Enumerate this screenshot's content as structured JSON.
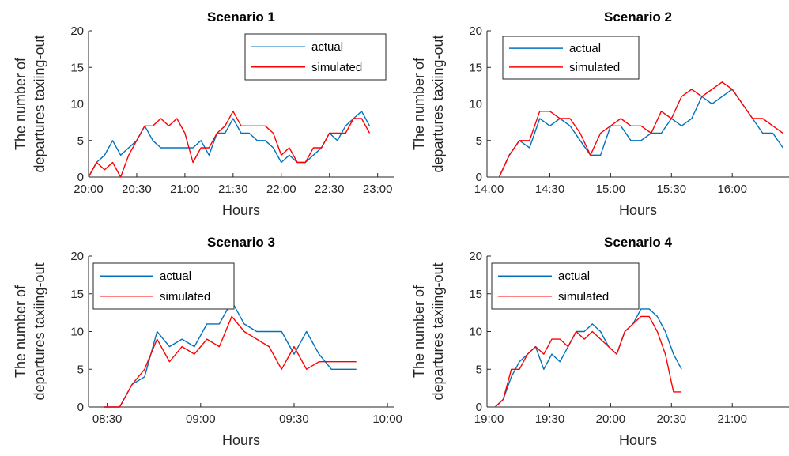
{
  "figure": {
    "colors": {
      "actual": "#0072BD",
      "simulated": "#FF0000",
      "axes": "#262626"
    }
  },
  "chart_data": [
    {
      "type": "line",
      "title": "Scenario 1",
      "xlabel": "Hours",
      "ylabel": [
        "The number of",
        "departures taxiing-out"
      ],
      "xlim": [
        "20:00",
        "23:10"
      ],
      "ylim": [
        0,
        20
      ],
      "x_ticks": [
        "20:00",
        "20:30",
        "21:00",
        "21:30",
        "22:00",
        "22:30",
        "23:00"
      ],
      "y_ticks": [
        0,
        5,
        10,
        15,
        20
      ],
      "legend": "top-right",
      "series": [
        {
          "name": "actual",
          "color": "#0072BD",
          "x": [
            "20:00",
            "20:05",
            "20:10",
            "20:15",
            "20:20",
            "20:25",
            "20:30",
            "20:35",
            "20:40",
            "20:45",
            "20:50",
            "20:55",
            "21:00",
            "21:05",
            "21:10",
            "21:15",
            "21:20",
            "21:25",
            "21:30",
            "21:35",
            "21:40",
            "21:45",
            "21:50",
            "21:55",
            "22:00",
            "22:05",
            "22:10",
            "22:15",
            "22:20",
            "22:25",
            "22:30",
            "22:35",
            "22:40",
            "22:45",
            "22:50",
            "22:55"
          ],
          "values": [
            0,
            2,
            3,
            5,
            3,
            4,
            5,
            7,
            5,
            4,
            4,
            4,
            4,
            4,
            5,
            3,
            6,
            6,
            8,
            6,
            6,
            5,
            5,
            4,
            2,
            3,
            2,
            2,
            3,
            4,
            6,
            5,
            7,
            8,
            9,
            7
          ]
        },
        {
          "name": "simulated",
          "color": "#FF0000",
          "x": [
            "20:00",
            "20:05",
            "20:10",
            "20:15",
            "20:20",
            "20:25",
            "20:30",
            "20:35",
            "20:40",
            "20:45",
            "20:50",
            "20:55",
            "21:00",
            "21:05",
            "21:10",
            "21:15",
            "21:20",
            "21:25",
            "21:30",
            "21:35",
            "21:40",
            "21:45",
            "21:50",
            "21:55",
            "22:00",
            "22:05",
            "22:10",
            "22:15",
            "22:20",
            "22:25",
            "22:30",
            "22:35",
            "22:40",
            "22:45",
            "22:50",
            "22:55"
          ],
          "values": [
            0,
            2,
            1,
            2,
            0,
            3,
            5,
            7,
            7,
            8,
            7,
            8,
            6,
            2,
            4,
            4,
            6,
            7,
            9,
            7,
            7,
            7,
            7,
            6,
            3,
            4,
            2,
            2,
            4,
            4,
            6,
            6,
            6,
            8,
            8,
            6
          ]
        }
      ]
    },
    {
      "type": "line",
      "title": "Scenario 2",
      "xlabel": "Hours",
      "ylabel": [
        "The number of",
        "departures taxiing-out"
      ],
      "xlim": [
        "13:59",
        "16:28"
      ],
      "ylim": [
        0,
        20
      ],
      "x_ticks": [
        "14:00",
        "14:30",
        "15:00",
        "15:30",
        "16:00"
      ],
      "y_ticks": [
        0,
        5,
        10,
        15,
        20
      ],
      "legend": "top-left",
      "series": [
        {
          "name": "actual",
          "color": "#0072BD",
          "x": [
            "14:05",
            "14:10",
            "14:15",
            "14:20",
            "14:25",
            "14:30",
            "14:35",
            "14:40",
            "14:45",
            "14:50",
            "14:55",
            "15:00",
            "15:05",
            "15:10",
            "15:15",
            "15:20",
            "15:25",
            "15:30",
            "15:35",
            "15:40",
            "15:45",
            "15:50",
            "15:55",
            "16:00",
            "16:05",
            "16:10",
            "16:15",
            "16:20",
            "16:25"
          ],
          "values": [
            0,
            3,
            5,
            4,
            8,
            7,
            8,
            7,
            5,
            3,
            3,
            7,
            7,
            5,
            5,
            6,
            6,
            8,
            7,
            8,
            11,
            10,
            11,
            12,
            10,
            8,
            6,
            6,
            4
          ]
        },
        {
          "name": "simulated",
          "color": "#FF0000",
          "x": [
            "14:05",
            "14:10",
            "14:15",
            "14:20",
            "14:25",
            "14:30",
            "14:35",
            "14:40",
            "14:45",
            "14:50",
            "14:55",
            "15:00",
            "15:05",
            "15:10",
            "15:15",
            "15:20",
            "15:25",
            "15:30",
            "15:35",
            "15:40",
            "15:45",
            "15:50",
            "15:55",
            "16:00",
            "16:05",
            "16:10",
            "16:15",
            "16:20",
            "16:25"
          ],
          "values": [
            0,
            3,
            5,
            5,
            9,
            9,
            8,
            8,
            6,
            3,
            6,
            7,
            8,
            7,
            7,
            6,
            9,
            8,
            11,
            12,
            11,
            12,
            13,
            12,
            10,
            8,
            8,
            7,
            6
          ]
        }
      ]
    },
    {
      "type": "line",
      "title": "Scenario 3",
      "xlabel": "Hours",
      "ylabel": [
        "The number of",
        "departures taxiing-out"
      ],
      "xlim": [
        "08:24",
        "10:02"
      ],
      "ylim": [
        0,
        20
      ],
      "x_ticks": [
        "08:30",
        "09:00",
        "09:30",
        "10:00"
      ],
      "y_ticks": [
        0,
        5,
        10,
        15,
        20
      ],
      "legend": "top-left",
      "series": [
        {
          "name": "actual",
          "color": "#0072BD",
          "x": [
            "08:29",
            "08:34",
            "08:38",
            "08:42",
            "08:46",
            "08:50",
            "08:54",
            "08:58",
            "09:02",
            "09:06",
            "09:10",
            "09:14",
            "09:18",
            "09:22",
            "09:26",
            "09:30",
            "09:34",
            "09:38",
            "09:42",
            "09:46",
            "09:50"
          ],
          "values": [
            0,
            0,
            3,
            4,
            10,
            8,
            9,
            8,
            11,
            11,
            14,
            11,
            10,
            10,
            10,
            7,
            10,
            7,
            5,
            5,
            5
          ]
        },
        {
          "name": "simulated",
          "color": "#FF0000",
          "x": [
            "08:29",
            "08:34",
            "08:38",
            "08:42",
            "08:46",
            "08:50",
            "08:54",
            "08:58",
            "09:02",
            "09:06",
            "09:10",
            "09:14",
            "09:18",
            "09:22",
            "09:26",
            "09:30",
            "09:34",
            "09:38",
            "09:42",
            "09:46",
            "09:50"
          ],
          "values": [
            0,
            0,
            3,
            5,
            9,
            6,
            8,
            7,
            9,
            8,
            12,
            10,
            9,
            8,
            5,
            8,
            5,
            6,
            6,
            6,
            6
          ]
        }
      ]
    },
    {
      "type": "line",
      "title": "Scenario 4",
      "xlabel": "Hours",
      "ylabel": [
        "The number of",
        "departures taxiing-out"
      ],
      "xlim": [
        "18:59",
        "21:28"
      ],
      "ylim": [
        0,
        20
      ],
      "x_ticks": [
        "19:00",
        "19:30",
        "20:00",
        "20:30",
        "21:00"
      ],
      "y_ticks": [
        0,
        5,
        10,
        15,
        20
      ],
      "legend": "top-left",
      "series": [
        {
          "name": "actual",
          "color": "#0072BD",
          "x": [
            "19:03",
            "19:07",
            "19:11",
            "19:15",
            "19:19",
            "19:23",
            "19:27",
            "19:31",
            "19:35",
            "19:39",
            "19:43",
            "19:47",
            "19:51",
            "19:55",
            "19:59",
            "20:03",
            "20:07",
            "20:11",
            "20:15",
            "20:19",
            "20:23",
            "20:27",
            "20:31",
            "20:35",
            "20:39",
            "20:43",
            "20:47",
            "20:51",
            "20:55"
          ],
          "values": [
            0,
            1,
            4,
            6,
            7,
            8,
            5,
            7,
            6,
            8,
            10,
            10,
            11,
            10,
            8,
            7,
            10,
            11,
            13,
            13,
            12,
            10,
            7,
            5,
            null,
            null,
            null,
            null,
            null
          ]
        },
        {
          "name": "simulated",
          "color": "#FF0000",
          "x": [
            "19:03",
            "19:07",
            "19:11",
            "19:15",
            "19:19",
            "19:23",
            "19:27",
            "19:31",
            "19:35",
            "19:39",
            "19:43",
            "19:47",
            "19:51",
            "19:55",
            "19:59",
            "20:03",
            "20:07",
            "20:11",
            "20:15",
            "20:19",
            "20:23",
            "20:27",
            "20:31",
            "20:35",
            "20:39",
            "20:43",
            "20:47",
            "20:51",
            "20:55"
          ],
          "values": [
            0,
            1,
            5,
            5,
            7,
            8,
            7,
            9,
            9,
            8,
            10,
            9,
            10,
            9,
            8,
            7,
            10,
            11,
            12,
            12,
            10,
            7,
            2,
            2,
            null,
            null,
            null,
            null,
            null
          ]
        }
      ]
    }
  ]
}
